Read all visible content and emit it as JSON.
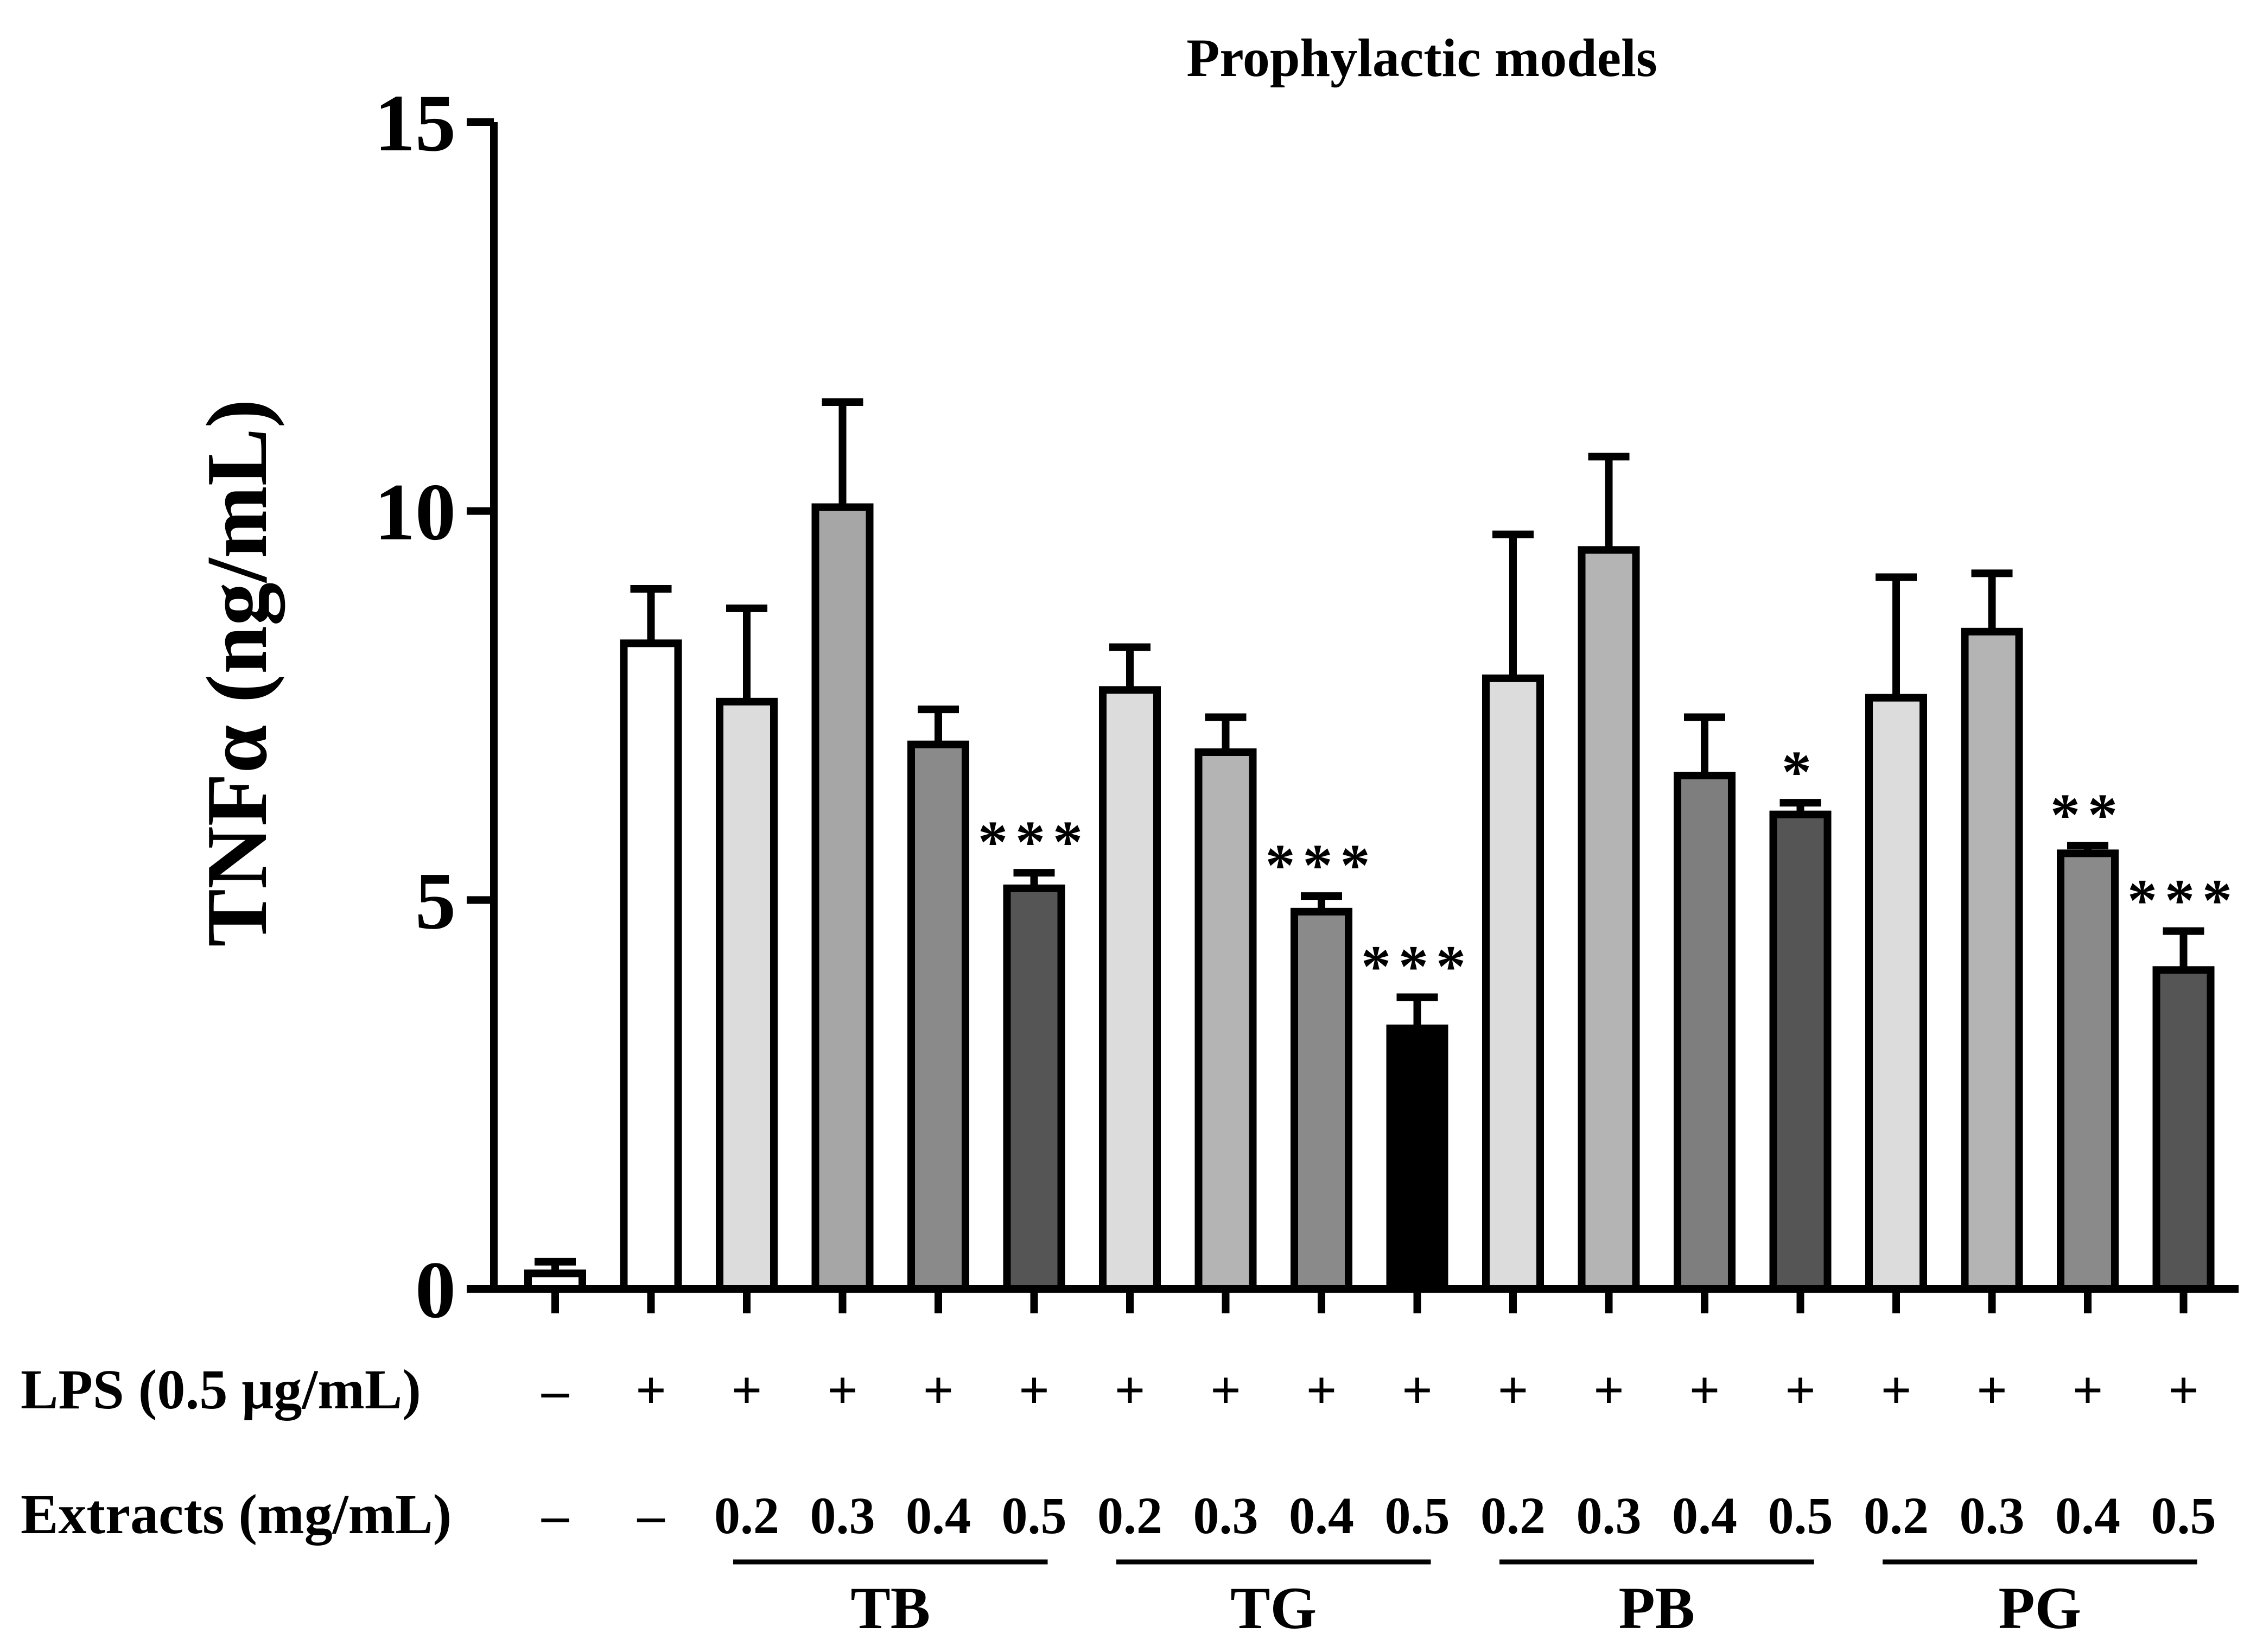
{
  "chart_data": {
    "type": "bar",
    "title": "Prophylactic models",
    "ylabel": "TNFα (ng/mL)",
    "xlabel": "",
    "ylim": [
      0,
      15
    ],
    "yticks": [
      "0",
      "5",
      "10",
      "15"
    ],
    "ytick_values": [
      0,
      5,
      10,
      15
    ],
    "row_labels": {
      "lps": "LPS (0.5 μg/mL)",
      "extracts": "Extracts (mg/mL)"
    },
    "groups": [
      {
        "name": "TB",
        "start": 2,
        "end": 5
      },
      {
        "name": "TG",
        "start": 6,
        "end": 9
      },
      {
        "name": "PB",
        "start": 10,
        "end": 13
      },
      {
        "name": "PG",
        "start": 14,
        "end": 17
      }
    ],
    "bars": [
      {
        "lps": "–",
        "extract": "–",
        "value": 0.2,
        "error": 0.15,
        "sig": "",
        "color": "#ffffff"
      },
      {
        "lps": "+",
        "extract": "–",
        "value": 8.3,
        "error": 0.7,
        "sig": "",
        "color": "#ffffff"
      },
      {
        "lps": "+",
        "extract": "0.2",
        "value": 7.55,
        "error": 1.2,
        "sig": "",
        "color": "#dcdcdc"
      },
      {
        "lps": "+",
        "extract": "0.3",
        "value": 10.05,
        "error": 1.35,
        "sig": "",
        "color": "#a6a6a6"
      },
      {
        "lps": "+",
        "extract": "0.4",
        "value": 7.0,
        "error": 0.45,
        "sig": "",
        "color": "#8a8a8a"
      },
      {
        "lps": "+",
        "extract": "0.5",
        "value": 5.15,
        "error": 0.2,
        "sig": "***",
        "color": "#555555"
      },
      {
        "lps": "+",
        "extract": "0.2",
        "value": 7.7,
        "error": 0.55,
        "sig": "",
        "color": "#dcdcdc"
      },
      {
        "lps": "+",
        "extract": "0.3",
        "value": 6.9,
        "error": 0.45,
        "sig": "",
        "color": "#b4b4b4"
      },
      {
        "lps": "+",
        "extract": "0.4",
        "value": 4.85,
        "error": 0.2,
        "sig": "***",
        "color": "#8a8a8a"
      },
      {
        "lps": "+",
        "extract": "0.5",
        "value": 3.35,
        "error": 0.4,
        "sig": "***",
        "color": "#000000"
      },
      {
        "lps": "+",
        "extract": "0.2",
        "value": 7.85,
        "error": 1.85,
        "sig": "",
        "color": "#dcdcdc"
      },
      {
        "lps": "+",
        "extract": "0.3",
        "value": 9.5,
        "error": 1.2,
        "sig": "",
        "color": "#b4b4b4"
      },
      {
        "lps": "+",
        "extract": "0.4",
        "value": 6.6,
        "error": 0.75,
        "sig": "",
        "color": "#7e7e7e"
      },
      {
        "lps": "+",
        "extract": "0.5",
        "value": 6.1,
        "error": 0.15,
        "sig": "*",
        "color": "#555555"
      },
      {
        "lps": "+",
        "extract": "0.2",
        "value": 7.6,
        "error": 1.55,
        "sig": "",
        "color": "#dcdcdc"
      },
      {
        "lps": "+",
        "extract": "0.3",
        "value": 8.45,
        "error": 0.75,
        "sig": "",
        "color": "#b4b4b4"
      },
      {
        "lps": "+",
        "extract": "0.4",
        "value": 5.6,
        "error": 0.1,
        "sig": "**",
        "color": "#8a8a8a"
      },
      {
        "lps": "+",
        "extract": "0.5",
        "value": 4.1,
        "error": 0.5,
        "sig": "***",
        "color": "#555555"
      }
    ]
  }
}
